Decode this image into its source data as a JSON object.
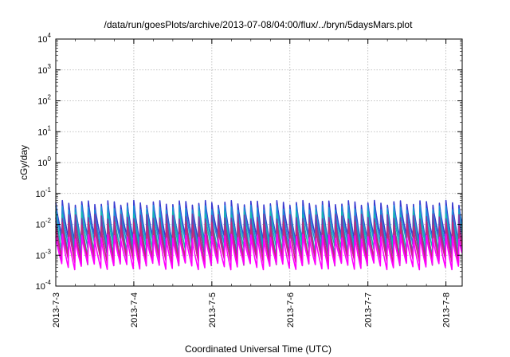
{
  "chart_data": {
    "type": "line",
    "title": "/data/run/goesPlots/archive/2013-07-08/04:00/flux/../bryn/5daysMars.plot",
    "xlabel": "Coordinated Universal Time (UTC)",
    "ylabel": "cGy/day",
    "y_scale": "log",
    "ylim": [
      0.0001,
      10000
    ],
    "y_ticks": [
      {
        "base": "10",
        "exp": "-4",
        "value": 0.0001
      },
      {
        "base": "10",
        "exp": "-3",
        "value": 0.001
      },
      {
        "base": "10",
        "exp": "-2",
        "value": 0.01
      },
      {
        "base": "10",
        "exp": "-1",
        "value": 0.1
      },
      {
        "base": "10",
        "exp": "0",
        "value": 1
      },
      {
        "base": "10",
        "exp": "1",
        "value": 10
      },
      {
        "base": "10",
        "exp": "2",
        "value": 100
      },
      {
        "base": "10",
        "exp": "3",
        "value": 1000
      },
      {
        "base": "10",
        "exp": "4",
        "value": 10000
      }
    ],
    "xlim": [
      "2013-07-03",
      "2013-07-08T05:00"
    ],
    "x_ticks": [
      {
        "label": "2013-7-3",
        "value": "2013-07-03"
      },
      {
        "label": "2013-7-4",
        "value": "2013-07-04"
      },
      {
        "label": "2013-7-5",
        "value": "2013-07-05"
      },
      {
        "label": "2013-7-6",
        "value": "2013-07-06"
      },
      {
        "label": "2013-7-7",
        "value": "2013-07-07"
      },
      {
        "label": "2013-7-8",
        "value": "2013-07-08"
      }
    ],
    "grid": true,
    "pattern": "sawtooth",
    "cycles_per_day": 12,
    "series": [
      {
        "color": "#3a3ad0",
        "peak": 0.05,
        "trough": 0.0035
      },
      {
        "color": "#1e90d8",
        "peak": 0.035,
        "trough": 0.0025
      },
      {
        "color": "#14b8b0",
        "peak": 0.022,
        "trough": 0.0015
      },
      {
        "color": "#10c8a0",
        "peak": 0.012,
        "trough": 0.001
      },
      {
        "color": "#7a3aa8",
        "peak": 0.018,
        "trough": 0.0008
      },
      {
        "color": "#c830c8",
        "peak": 0.007,
        "trough": 0.0006
      },
      {
        "color": "#c8287a",
        "peak": 0.01,
        "trough": 0.0007
      },
      {
        "color": "#ff00ff",
        "peak": 0.004,
        "trough": 0.00045
      }
    ]
  }
}
